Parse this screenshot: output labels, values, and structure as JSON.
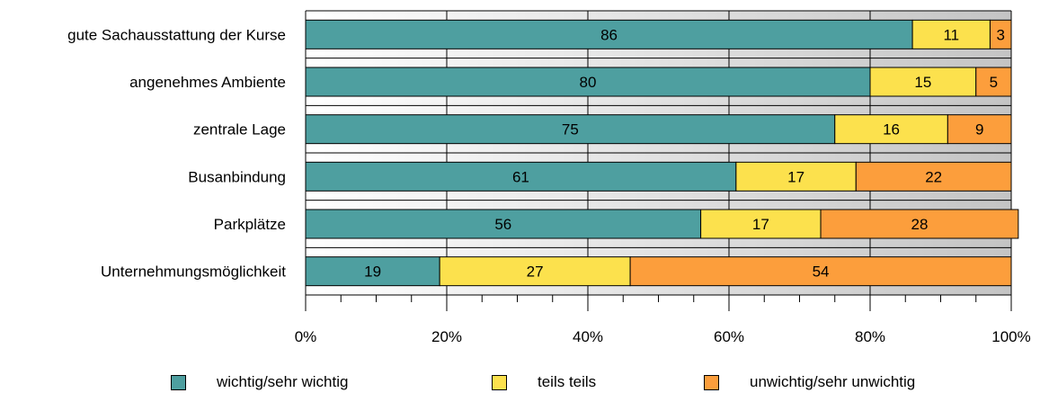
{
  "chart_data": {
    "type": "bar",
    "orientation": "horizontal",
    "stacked": true,
    "normalized": true,
    "title": "",
    "xlabel": "",
    "ylabel": "",
    "xlim": [
      0,
      100
    ],
    "categories": [
      "gute Sachausstattung der Kurse",
      "angenehmes Ambiente",
      "zentrale Lage",
      "Busanbindung",
      "Parkplätze",
      "Unternehmungsmöglichkeit"
    ],
    "series": [
      {
        "name": "wichtig/sehr wichtig",
        "color": "#4E9FA0",
        "values": [
          86,
          80,
          75,
          61,
          56,
          19
        ]
      },
      {
        "name": "teils teils",
        "color": "#FCE14D",
        "values": [
          11,
          15,
          16,
          17,
          17,
          27
        ]
      },
      {
        "name": "unwichtig/sehr unwichtig",
        "color": "#FC9E3C",
        "values": [
          3,
          5,
          9,
          22,
          28,
          54
        ]
      }
    ],
    "x_ticks": [
      "0%",
      "20%",
      "40%",
      "60%",
      "80%",
      "100%"
    ],
    "grid": true,
    "legend_position": "bottom"
  }
}
